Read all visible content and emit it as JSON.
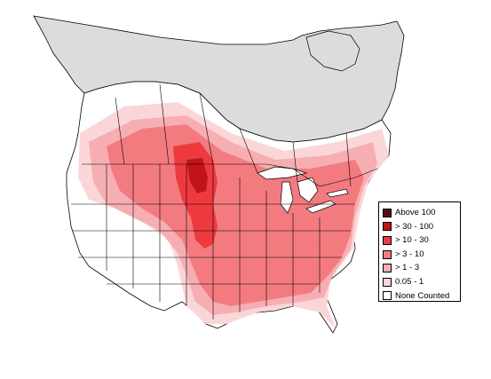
{
  "map": {
    "colors": {
      "background": "#ffffff",
      "not_surveyed": "#dcdcdc",
      "borders": "#000000",
      "water": "#ffffff"
    }
  },
  "legend": {
    "items": [
      {
        "label": "Above 100",
        "color": "#5a0d0d"
      },
      {
        "label": "> 30 - 100",
        "color": "#c0141a"
      },
      {
        "label": "> 10 - 30",
        "color": "#ee3a3e"
      },
      {
        "label": "> 3 - 10",
        "color": "#f37b80"
      },
      {
        "label": "> 1 - 3",
        "color": "#f7aeb2"
      },
      {
        "label": "0.05 - 1",
        "color": "#fbd6d8"
      },
      {
        "label": "None Counted",
        "color": "#ffffff"
      }
    ]
  }
}
